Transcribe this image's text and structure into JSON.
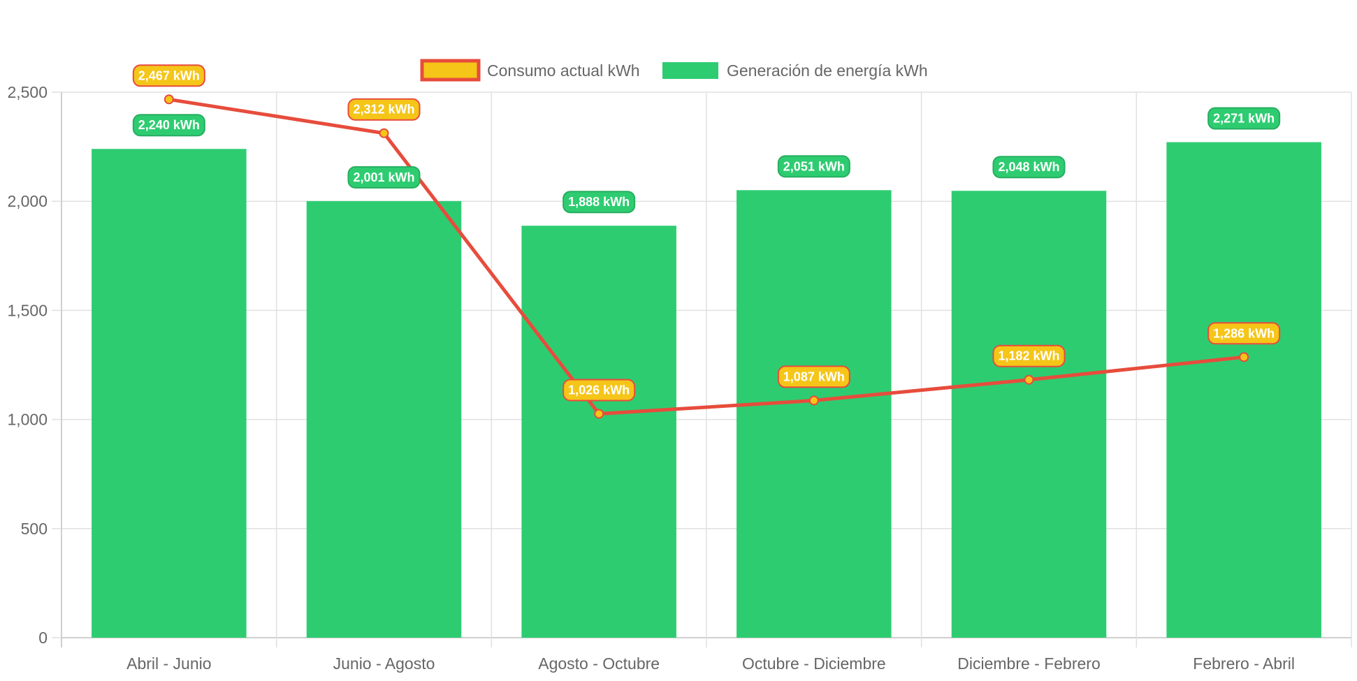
{
  "chart_data": {
    "type": "bar",
    "categories": [
      "Abril - Junio",
      "Junio - Agosto",
      "Agosto - Octubre",
      "Octubre - Diciembre",
      "Diciembre - Febrero",
      "Febrero - Abril"
    ],
    "series": [
      {
        "name": "Consumo actual kWh",
        "type": "line",
        "values": [
          2467,
          2312,
          1026,
          1087,
          1182,
          1286
        ],
        "labels": [
          "2,467 kWh",
          "2,312 kWh",
          "1,026 kWh",
          "1,087 kWh",
          "1,182 kWh",
          "1,286 kWh"
        ],
        "line_color": "#e74c3c",
        "fill_color": "#f5c518"
      },
      {
        "name": "Generación de energía kWh",
        "type": "bar",
        "values": [
          2240,
          2001,
          1888,
          2051,
          2048,
          2271
        ],
        "labels": [
          "2,240 kWh",
          "2,001 kWh",
          "1,888 kWh",
          "2,051 kWh",
          "2,048 kWh",
          "2,271 kWh"
        ],
        "color": "#2ecc71",
        "label_border_color": "#27ae60"
      }
    ],
    "ylim": [
      0,
      2500
    ],
    "y_ticks": [
      0,
      500,
      1000,
      1500,
      2000,
      2500
    ],
    "y_tick_labels": [
      "0",
      "500",
      "1,000",
      "1,500",
      "2,000",
      "2,500"
    ],
    "grid": true,
    "legend_position": "top"
  }
}
